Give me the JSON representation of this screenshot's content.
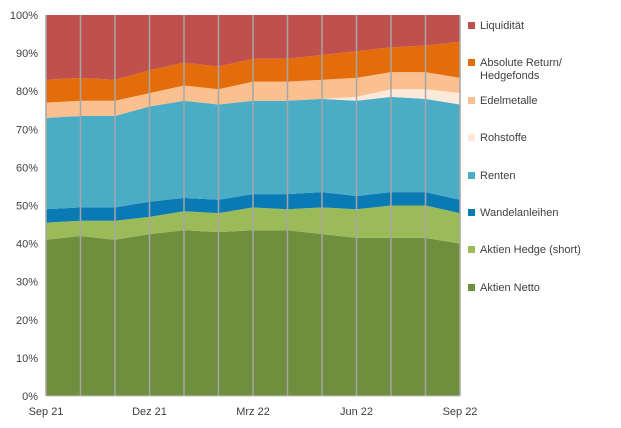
{
  "chart_data": {
    "type": "area",
    "stacked": true,
    "x": [
      "Sep 21",
      "",
      "",
      "Dez 21",
      "",
      "",
      "Mrz 22",
      "",
      "",
      "Jun 22",
      "",
      "",
      "Sep 22"
    ],
    "x_tick_labels": [
      "Sep 21",
      "Dez 21",
      "Mrz 22",
      "Jun 22",
      "Sep 22"
    ],
    "ylim": [
      0,
      100
    ],
    "y_tick_labels": [
      "0%",
      "10%",
      "20%",
      "30%",
      "40%",
      "50%",
      "60%",
      "70%",
      "80%",
      "90%",
      "100%"
    ],
    "grid": "vertical",
    "legend_position": "right",
    "series": [
      {
        "name": "Aktien Netto",
        "color": "#6e8f3d",
        "values": [
          41,
          42,
          41,
          42.5,
          43.5,
          43,
          43.5,
          43.5,
          42.5,
          41.5,
          41.5,
          41.5,
          40
        ]
      },
      {
        "name": "Aktien Hedge (short)",
        "color": "#9bbb59",
        "values": [
          4.5,
          4,
          5,
          4.5,
          5,
          5,
          6,
          5.5,
          7,
          7.5,
          8.5,
          8.5,
          8
        ]
      },
      {
        "name": "Wandelanleihen",
        "color": "#0a7ab4",
        "values": [
          3.5,
          3.5,
          3.5,
          4,
          3.5,
          3.5,
          3.5,
          4,
          4,
          3.5,
          3.5,
          3.5,
          3.5
        ]
      },
      {
        "name": "Renten",
        "color": "#4bacc6",
        "values": [
          24,
          24,
          24,
          25,
          25.5,
          25,
          24.5,
          24.5,
          24.5,
          25,
          25,
          24.5,
          25
        ]
      },
      {
        "name": "Rohstoffe",
        "color": "#fde9d9",
        "values": [
          0,
          0,
          0,
          0,
          0,
          0,
          0,
          0,
          0,
          1,
          2,
          2.5,
          3
        ]
      },
      {
        "name": "Edelmetalle",
        "color": "#fac090",
        "values": [
          4,
          4,
          4,
          3.5,
          4,
          4,
          5,
          5,
          5,
          5,
          4.5,
          4.5,
          4
        ]
      },
      {
        "name": "Absolute Return/ Hedgefonds",
        "legend_lines": [
          "Absolute Return/",
          "Hedgefonds"
        ],
        "color": "#e46c0a",
        "values": [
          6,
          6,
          5.5,
          6,
          6,
          6,
          6,
          6,
          6.5,
          7,
          6.5,
          7,
          9.5
        ]
      },
      {
        "name": "Liquidität",
        "color": "#c0504d",
        "values": [
          17,
          16.5,
          17,
          14.5,
          12.5,
          13.5,
          11.5,
          11.5,
          10.5,
          9.5,
          8.5,
          8,
          7
        ]
      }
    ]
  }
}
